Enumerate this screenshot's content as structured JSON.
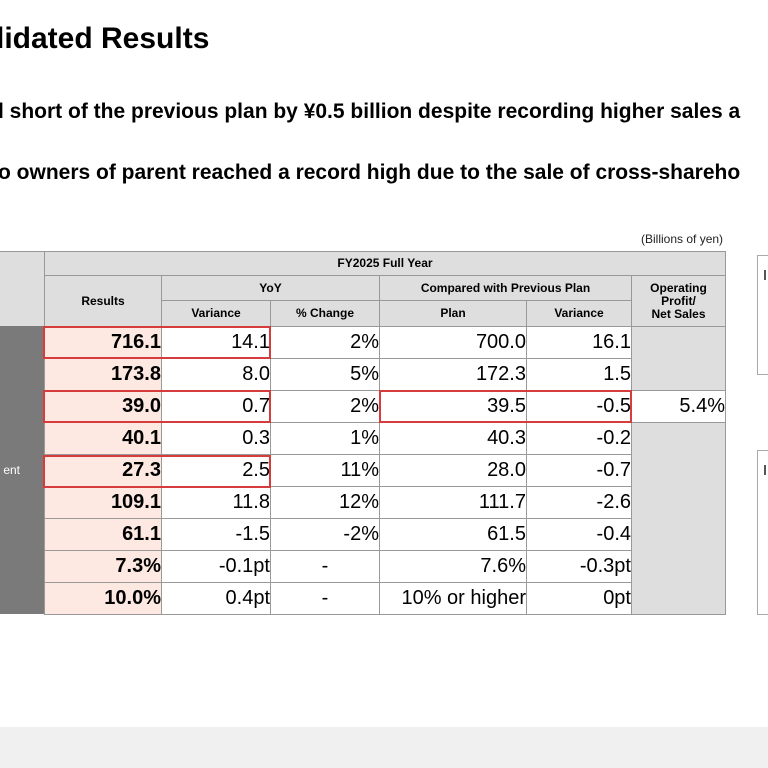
{
  "title": "lidated Results",
  "bullets": [
    "l short of the previous plan by ¥0.5 billion despite recording higher sales a",
    "o owners of parent reached a record high due to the sale of cross-shareho"
  ],
  "unit_note": "(Billions of yen)",
  "table": {
    "header_period": "FY2025 Full Year",
    "header_results": "Results",
    "header_yoy": "YoY",
    "header_yoy_variance": "Variance",
    "header_yoy_pct": "% Change",
    "header_plan_group": "Compared with Previous Plan",
    "header_plan": "Plan",
    "header_plan_variance": "Variance",
    "header_margin_l1": "Operating",
    "header_margin_l2": "Profit/",
    "header_margin_l3": "Net Sales",
    "margin_value": "5.4%",
    "row_partial_label": "ent",
    "rows": [
      {
        "results": "716.1",
        "yoy_var": "14.1",
        "yoy_pct": "2%",
        "plan": "700.0",
        "plan_var": "16.1"
      },
      {
        "results": "173.8",
        "yoy_var": "8.0",
        "yoy_pct": "5%",
        "plan": "172.3",
        "plan_var": "1.5"
      },
      {
        "results": "39.0",
        "yoy_var": "0.7",
        "yoy_pct": "2%",
        "plan": "39.5",
        "plan_var": "-0.5"
      },
      {
        "results": "40.1",
        "yoy_var": "0.3",
        "yoy_pct": "1%",
        "plan": "40.3",
        "plan_var": "-0.2"
      },
      {
        "results": "27.3",
        "yoy_var": "2.5",
        "yoy_pct": "11%",
        "plan": "28.0",
        "plan_var": "-0.7"
      },
      {
        "results": "109.1",
        "yoy_var": "11.8",
        "yoy_pct": "12%",
        "plan": "111.7",
        "plan_var": "-2.6"
      },
      {
        "results": "61.1",
        "yoy_var": "-1.5",
        "yoy_pct": "-2%",
        "plan": "61.5",
        "plan_var": "-0.4"
      },
      {
        "results": "7.3%",
        "yoy_var": "-0.1pt",
        "yoy_pct": "-",
        "plan": "7.6%",
        "plan_var": "-0.3pt"
      },
      {
        "results": "10.0%",
        "yoy_var": "0.4pt",
        "yoy_pct": "-",
        "plan": "10% or higher",
        "plan_var": "0pt"
      }
    ]
  },
  "colors": {
    "results_fill": "#fde9e1",
    "highlight_border": "#d63c3c",
    "header_fill": "#dedede",
    "label_column": "#7a7a7a"
  }
}
